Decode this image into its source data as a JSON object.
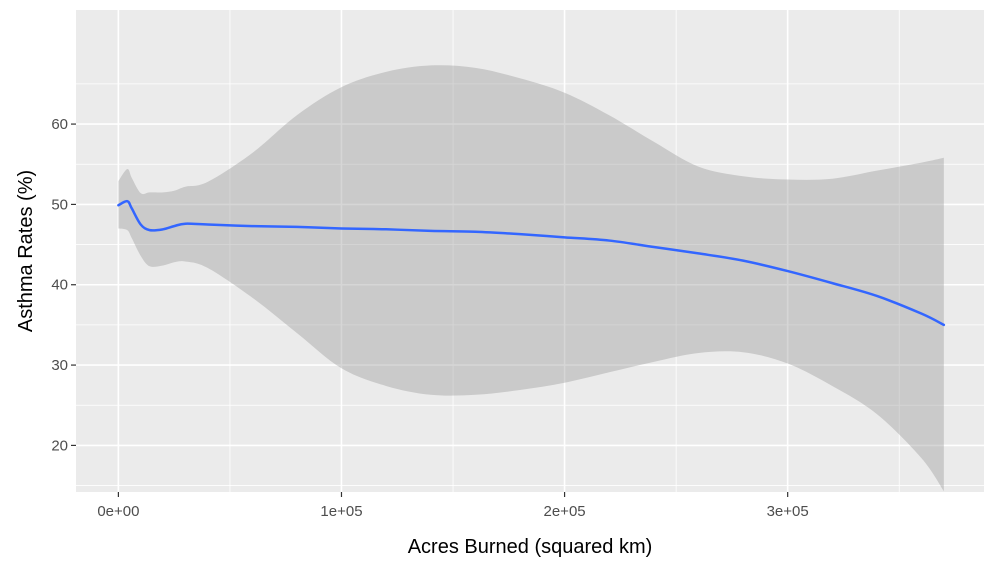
{
  "chart_data": {
    "type": "line",
    "xlabel": "Acres Burned (squared km)",
    "ylabel": "Asthma Rates (%)",
    "xlim": [
      -19000,
      388000
    ],
    "ylim": [
      14.2,
      74.2
    ],
    "x_ticks": [
      0,
      100000,
      200000,
      300000
    ],
    "x_tick_labels": [
      "0e+00",
      "1e+05",
      "2e+05",
      "3e+05"
    ],
    "y_ticks": [
      20,
      30,
      40,
      50,
      60
    ],
    "y_tick_labels": [
      "20",
      "30",
      "40",
      "50",
      "60"
    ],
    "grid": true,
    "legend": "none",
    "colors": {
      "panel_background": "#ebebeb",
      "grid": "#ffffff",
      "line": "#3366ff",
      "ribbon": "#999999"
    },
    "series": [
      {
        "x": [
          0,
          4000,
          6000,
          10000,
          14000,
          20000,
          25000,
          30000,
          40000,
          60000,
          80000,
          100000,
          120000,
          140000,
          160000,
          180000,
          200000,
          220000,
          240000,
          260000,
          280000,
          300000,
          320000,
          340000,
          360000,
          370000
        ],
        "y": [
          49.9,
          50.4,
          49.5,
          47.5,
          46.8,
          46.9,
          47.3,
          47.6,
          47.5,
          47.3,
          47.2,
          47.0,
          46.9,
          46.7,
          46.6,
          46.3,
          45.9,
          45.5,
          44.7,
          43.9,
          43.0,
          41.7,
          40.2,
          38.6,
          36.4,
          35.0
        ],
        "ymin": [
          47.0,
          46.8,
          45.8,
          43.6,
          42.3,
          42.4,
          42.8,
          42.9,
          42.1,
          38.4,
          34.0,
          29.6,
          27.4,
          26.3,
          26.3,
          26.9,
          27.8,
          29.1,
          30.4,
          31.5,
          31.6,
          30.2,
          27.4,
          23.9,
          18.4,
          14.3
        ],
        "ymax": [
          52.9,
          54.4,
          53.3,
          51.4,
          51.5,
          51.5,
          51.7,
          52.2,
          52.8,
          56.4,
          61.1,
          64.6,
          66.5,
          67.3,
          67.0,
          65.7,
          63.9,
          61.1,
          57.8,
          54.7,
          53.5,
          53.1,
          53.2,
          54.2,
          55.2,
          55.8
        ]
      }
    ]
  }
}
